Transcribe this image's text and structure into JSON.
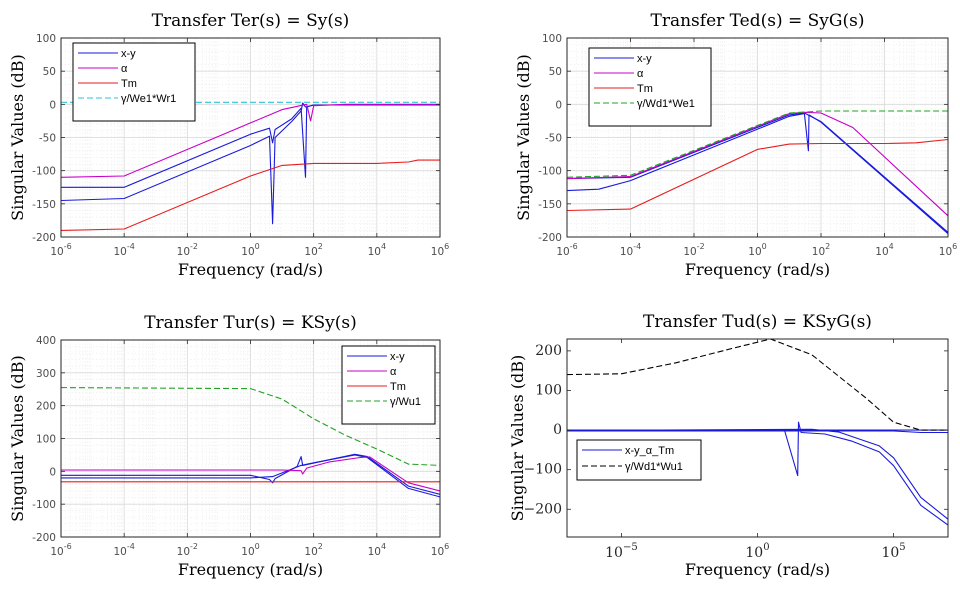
{
  "chart_data": [
    {
      "type": "line",
      "title": "Transfer Ter(s) = Sy(s)",
      "xlabel": "Frequency (rad/s)",
      "ylabel": "Singular Values (dB)",
      "xscale": "log",
      "xlim": [
        1e-06,
        1000000.0
      ],
      "ylim": [
        -200,
        100
      ],
      "xticks": [
        1e-06,
        0.0001,
        0.01,
        1,
        100.0,
        10000.0,
        1000000.0
      ],
      "xticklabels": [
        [
          "10",
          "-6"
        ],
        [
          "10",
          "-4"
        ],
        [
          "10",
          "-2"
        ],
        [
          "10",
          "0"
        ],
        [
          "10",
          "2"
        ],
        [
          "10",
          "4"
        ],
        [
          "10",
          "6"
        ]
      ],
      "yticks": [
        -200,
        -150,
        -100,
        -50,
        0,
        50,
        100
      ],
      "yticklabels": [
        "-200",
        "-150",
        "-100",
        "-50",
        "0",
        "50",
        "100"
      ],
      "grid": true,
      "legend_placement": "top-left",
      "series": [
        {
          "name": "x-y",
          "color": "#1a1adb",
          "dash": "solid",
          "points": [
            [
              1e-06,
              -125
            ],
            [
              0.0001,
              -125
            ],
            [
              1,
              -45
            ],
            [
              4,
              -36
            ],
            [
              5,
              -58
            ],
            [
              6,
              -38
            ],
            [
              20,
              -22
            ],
            [
              40,
              -6
            ],
            [
              55,
              -110
            ],
            [
              60,
              -4
            ],
            [
              100,
              -1
            ],
            [
              1000000.0,
              -1
            ]
          ]
        },
        {
          "name": "",
          "color": "#1a1adb",
          "dash": "solid",
          "points": [
            [
              1e-06,
              -145
            ],
            [
              0.0001,
              -142
            ],
            [
              1,
              -62
            ],
            [
              4,
              -48
            ],
            [
              5,
              -180
            ],
            [
              6,
              -50
            ],
            [
              20,
              -26
            ],
            [
              40,
              -10
            ],
            [
              45,
              2
            ],
            [
              55,
              -4
            ],
            [
              100,
              -1
            ],
            [
              1000000.0,
              -1
            ]
          ]
        },
        {
          "name": "α",
          "color": "#c800c8",
          "dash": "solid",
          "points": [
            [
              1e-06,
              -110
            ],
            [
              0.0001,
              -108
            ],
            [
              1,
              -28
            ],
            [
              10,
              -8
            ],
            [
              60,
              0
            ],
            [
              80,
              -25
            ],
            [
              100,
              -2
            ],
            [
              1000,
              0
            ],
            [
              1000000.0,
              0
            ]
          ]
        },
        {
          "name": "Tm",
          "color": "#e61e1e",
          "dash": "solid",
          "points": [
            [
              1e-06,
              -190
            ],
            [
              0.0001,
              -188
            ],
            [
              1,
              -108
            ],
            [
              10,
              -92
            ],
            [
              100,
              -89
            ],
            [
              10000.0,
              -89
            ],
            [
              100000.0,
              -87
            ],
            [
              200000.0,
              -84
            ],
            [
              1000000.0,
              -84
            ]
          ]
        },
        {
          "name": "γ/We1*Wr1",
          "color": "#2ec4d6",
          "dash": "dashed",
          "points": [
            [
              1e-06,
              3
            ],
            [
              1000000.0,
              3
            ]
          ]
        }
      ]
    },
    {
      "type": "line",
      "title": "Transfer Ted(s) = SyG(s)",
      "xlabel": "Frequency (rad/s)",
      "ylabel": "Singular Values (dB)",
      "xscale": "log",
      "xlim": [
        1e-06,
        1000000.0
      ],
      "ylim": [
        -200,
        100
      ],
      "xticks": [
        1e-06,
        0.0001,
        0.01,
        1,
        100.0,
        10000.0,
        1000000.0
      ],
      "xticklabels": [
        [
          "10",
          "-6"
        ],
        [
          "10",
          "-4"
        ],
        [
          "10",
          "-2"
        ],
        [
          "10",
          "0"
        ],
        [
          "10",
          "2"
        ],
        [
          "10",
          "4"
        ],
        [
          "10",
          "6"
        ]
      ],
      "yticks": [
        -200,
        -150,
        -100,
        -50,
        0,
        50,
        100
      ],
      "yticklabels": [
        "-200",
        "-150",
        "-100",
        "-50",
        "0",
        "50",
        "100"
      ],
      "grid": true,
      "legend_placement": "top-left",
      "series": [
        {
          "name": "x-y",
          "color": "#1a1adb",
          "dash": "solid",
          "points": [
            [
              1e-06,
              -130
            ],
            [
              1e-05,
              -128
            ],
            [
              0.0001,
              -115
            ],
            [
              10,
              -18
            ],
            [
              30,
              -14
            ],
            [
              40,
              -70
            ],
            [
              42,
              -16
            ],
            [
              100,
              -27
            ],
            [
              1000000.0,
              -195
            ]
          ]
        },
        {
          "name": "",
          "color": "#1a1adb",
          "dash": "solid",
          "points": [
            [
              1e-06,
              -112
            ],
            [
              0.0001,
              -110
            ],
            [
              10,
              -16
            ],
            [
              30,
              -13
            ],
            [
              100,
              -26
            ],
            [
              1000000.0,
              -193
            ]
          ]
        },
        {
          "name": "α",
          "color": "#c800c8",
          "dash": "solid",
          "points": [
            [
              1e-06,
              -112
            ],
            [
              0.0001,
              -109
            ],
            [
              10,
              -14
            ],
            [
              30,
              -12
            ],
            [
              100,
              -13
            ],
            [
              1000,
              -35
            ],
            [
              1000000.0,
              -168
            ]
          ]
        },
        {
          "name": "Tm",
          "color": "#e61e1e",
          "dash": "solid",
          "points": [
            [
              1e-06,
              -160
            ],
            [
              0.0001,
              -158
            ],
            [
              1,
              -68
            ],
            [
              10,
              -60
            ],
            [
              100,
              -59
            ],
            [
              10000.0,
              -59
            ],
            [
              100000.0,
              -58
            ],
            [
              1000000.0,
              -53
            ]
          ]
        },
        {
          "name": "γ/Wd1*We1",
          "color": "#22a022",
          "dash": "dashed",
          "points": [
            [
              1e-06,
              -110
            ],
            [
              0.0001,
              -107
            ],
            [
              10,
              -13
            ],
            [
              100,
              -10
            ],
            [
              1000000.0,
              -10
            ]
          ]
        }
      ]
    },
    {
      "type": "line",
      "title": "Transfer Tur(s) = KSy(s)",
      "xlabel": "Frequency (rad/s)",
      "ylabel": "Singular Values (dB)",
      "xscale": "log",
      "xlim": [
        1e-06,
        1000000.0
      ],
      "ylim": [
        -200,
        400
      ],
      "xticks": [
        1e-06,
        0.0001,
        0.01,
        1,
        100.0,
        10000.0,
        1000000.0
      ],
      "xticklabels": [
        [
          "10",
          "-6"
        ],
        [
          "10",
          "-4"
        ],
        [
          "10",
          "-2"
        ],
        [
          "10",
          "0"
        ],
        [
          "10",
          "2"
        ],
        [
          "10",
          "4"
        ],
        [
          "10",
          "6"
        ]
      ],
      "yticks": [
        -200,
        -100,
        0,
        100,
        200,
        300,
        400
      ],
      "yticklabels": [
        "-200",
        "-100",
        "0",
        "100",
        "200",
        "300",
        "400"
      ],
      "grid": true,
      "legend_placement": "top-right",
      "series": [
        {
          "name": "x-y",
          "color": "#1a1adb",
          "dash": "solid",
          "points": [
            [
              1e-06,
              -12
            ],
            [
              1,
              -12
            ],
            [
              4,
              -25
            ],
            [
              5,
              -35
            ],
            [
              6,
              -22
            ],
            [
              30,
              15
            ],
            [
              40,
              45
            ],
            [
              45,
              18
            ],
            [
              100,
              25
            ],
            [
              2000,
              52
            ],
            [
              5000,
              45
            ],
            [
              100000.0,
              -45
            ],
            [
              1000000.0,
              -70
            ]
          ]
        },
        {
          "name": "",
          "color": "#1a1adb",
          "dash": "solid",
          "points": [
            [
              1e-06,
              -20
            ],
            [
              1,
              -20
            ],
            [
              5,
              -16
            ],
            [
              40,
              18
            ],
            [
              100,
              26
            ],
            [
              2000,
              50
            ],
            [
              5000,
              42
            ],
            [
              100000.0,
              -52
            ],
            [
              1000000.0,
              -78
            ]
          ]
        },
        {
          "name": "α",
          "color": "#c800c8",
          "dash": "solid",
          "points": [
            [
              1e-06,
              4
            ],
            [
              10,
              4
            ],
            [
              40,
              2
            ],
            [
              45,
              -8
            ],
            [
              60,
              10
            ],
            [
              300,
              28
            ],
            [
              3000,
              42
            ],
            [
              6000,
              44
            ],
            [
              20000.0,
              10
            ],
            [
              100000.0,
              -35
            ],
            [
              1000000.0,
              -60
            ]
          ]
        },
        {
          "name": "Tm",
          "color": "#e61e1e",
          "dash": "solid",
          "points": [
            [
              1e-06,
              -32
            ],
            [
              1000000.0,
              -32
            ]
          ]
        },
        {
          "name": "γ/Wu1",
          "color": "#22a022",
          "dash": "dashed",
          "points": [
            [
              1e-06,
              255
            ],
            [
              1,
              252
            ],
            [
              10,
              220
            ],
            [
              100,
              160
            ],
            [
              1000,
              110
            ],
            [
              10000.0,
              68
            ],
            [
              100000.0,
              22
            ],
            [
              1000000.0,
              18
            ]
          ]
        }
      ]
    },
    {
      "type": "line",
      "title": "Transfer Tud(s) = KSyG(s)",
      "xlabel": "Frequency (rad/s)",
      "ylabel": "Singular Values (dB)",
      "xscale": "log",
      "xlim": [
        1e-07,
        10000000.0
      ],
      "ylim": [
        -270,
        230
      ],
      "xticks": [
        1e-05,
        1,
        100000.0
      ],
      "xticklabels": [
        [
          "10",
          "−5"
        ],
        [
          "10",
          "0"
        ],
        [
          "10",
          "5"
        ]
      ],
      "yticks": [
        -200,
        -100,
        0,
        100,
        200
      ],
      "yticklabels": [
        "−200",
        "−100",
        "0",
        "100",
        "200"
      ],
      "grid": false,
      "legend_placement": "bottom-left",
      "series": [
        {
          "name": "x-y_α_Tm",
          "color": "#1a1adb",
          "dash": "solid",
          "points": [
            [
              1e-07,
              0
            ],
            [
              10000000.0,
              0
            ]
          ]
        },
        {
          "name": "",
          "color": "#1a1adb",
          "dash": "solid",
          "points": [
            [
              1e-07,
              -2
            ],
            [
              10,
              -2
            ],
            [
              30,
              -115
            ],
            [
              32,
              20
            ],
            [
              40,
              -6
            ],
            [
              300,
              -10
            ],
            [
              3000,
              -28
            ],
            [
              30000.0,
              -55
            ],
            [
              100000.0,
              -90
            ],
            [
              1000000.0,
              -190
            ],
            [
              10000000.0,
              -240
            ]
          ]
        },
        {
          "name": "",
          "color": "#1a1adb",
          "dash": "solid",
          "points": [
            [
              1e-07,
              -1
            ],
            [
              100,
              2
            ],
            [
              1000,
              -5
            ],
            [
              30000.0,
              -40
            ],
            [
              100000.0,
              -70
            ],
            [
              1000000.0,
              -170
            ],
            [
              10000000.0,
              -225
            ]
          ]
        },
        {
          "name": "",
          "color": "#1a1adb",
          "dash": "solid",
          "points": [
            [
              1e-07,
              -2
            ],
            [
              100000.0,
              -2
            ],
            [
              1000000.0,
              -6
            ],
            [
              10000000.0,
              -6
            ]
          ]
        },
        {
          "name": "γ/Wd1*Wu1",
          "color": "#000000",
          "dash": "dashed",
          "points": [
            [
              1e-07,
              140
            ],
            [
              1e-05,
              142
            ],
            [
              0.001,
              170
            ],
            [
              0.1,
              205
            ],
            [
              3,
              230
            ],
            [
              100,
              190
            ],
            [
              10000.0,
              80
            ],
            [
              100000.0,
              20
            ],
            [
              1000000.0,
              0
            ],
            [
              10000000.0,
              0
            ]
          ]
        }
      ]
    }
  ]
}
